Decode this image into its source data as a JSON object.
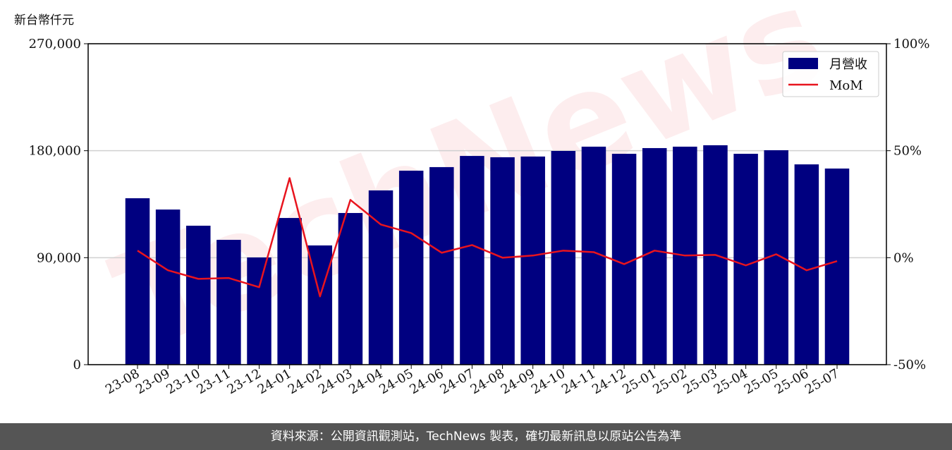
{
  "chart_data": {
    "type": "bar-line",
    "y_label": "新台幣仟元",
    "watermark": "TechNews",
    "categories": [
      "23-08",
      "23-09",
      "23-10",
      "23-11",
      "23-12",
      "24-01",
      "24-02",
      "24-03",
      "24-04",
      "24-05",
      "24-06",
      "24-07",
      "24-08",
      "24-09",
      "24-10",
      "24-11",
      "24-12",
      "25-01",
      "25-02",
      "25-03",
      "25-04",
      "25-05",
      "25-06",
      "25-07"
    ],
    "series": [
      {
        "name": "月營收",
        "type": "bar",
        "color": "#000080",
        "values": [
          140000,
          130500,
          116900,
          105000,
          90200,
          123400,
          100300,
          127600,
          146600,
          163200,
          166200,
          175600,
          174500,
          175100,
          179800,
          183400,
          177400,
          182200,
          183400,
          184600,
          177400,
          180400,
          168500,
          165000
        ]
      },
      {
        "name": "MoM",
        "type": "line",
        "axis": "y2",
        "color": "#e8141e",
        "values": [
          3.3,
          -5.9,
          -9.9,
          -9.5,
          -13.8,
          37.2,
          -18.1,
          27,
          15.5,
          11.5,
          2.3,
          5.9,
          0,
          1,
          3.3,
          2.6,
          -3,
          3.3,
          1,
          1.3,
          -3.6,
          1.6,
          -5.9,
          -1.6
        ]
      }
    ],
    "ylim": [
      0,
      270000
    ],
    "yticks": [
      0,
      {
        "value": 90000,
        "label": "90,000"
      },
      {
        "value": 180000,
        "label": "180,000"
      },
      {
        "value": 270000,
        "label": "270,000"
      }
    ],
    "y2lim": [
      -50,
      100
    ],
    "y2ticks": [
      {
        "value": -50,
        "label": "-50%"
      },
      {
        "value": 0,
        "label": "0%"
      },
      {
        "value": 50,
        "label": "50%"
      },
      {
        "value": 100,
        "label": "100%"
      }
    ],
    "grid": true,
    "legend": "upper right",
    "footer": "資料來源：公開資訊觀測站，TechNews 製表，確切最新訊息以原站公告為準"
  }
}
